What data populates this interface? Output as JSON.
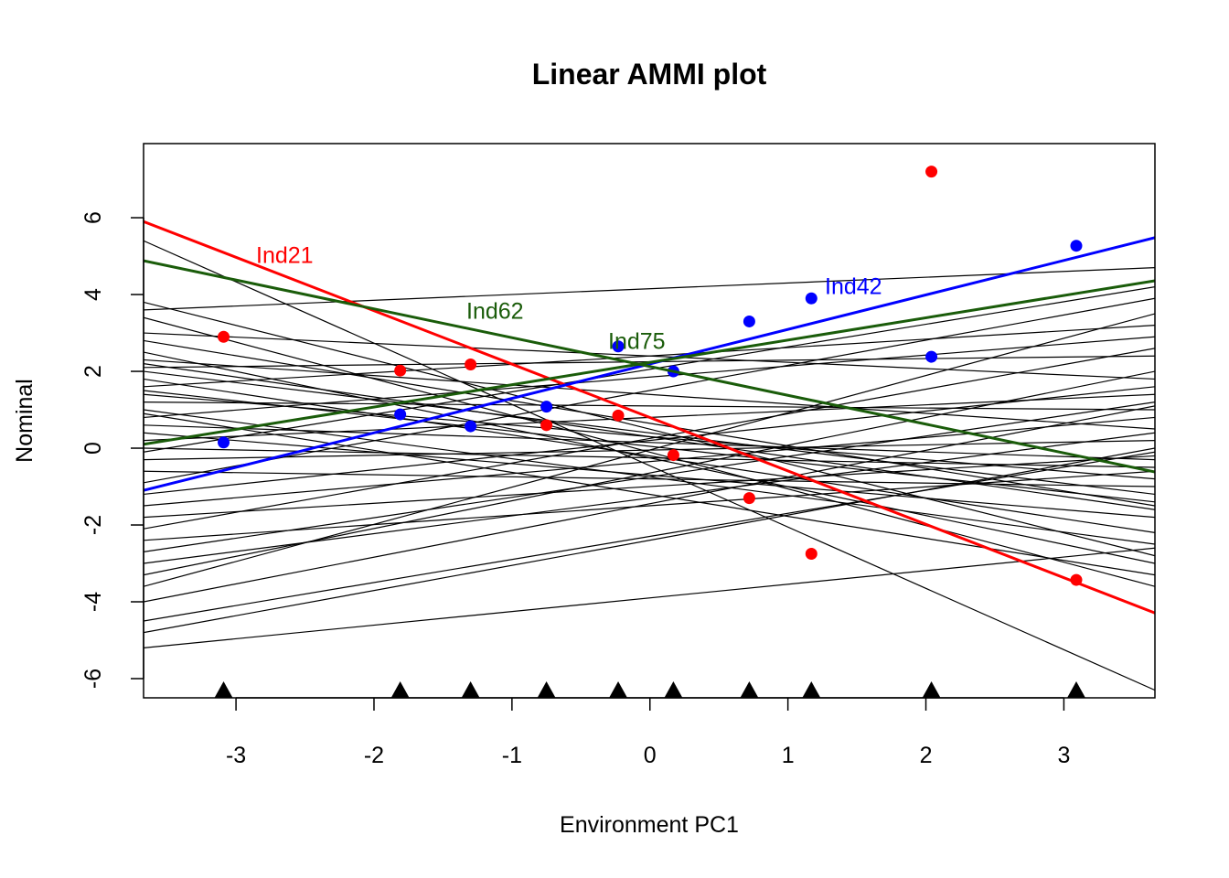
{
  "chart_data": {
    "type": "line",
    "title": "Linear AMMI plot",
    "x_label": "Environment PC1",
    "y_label": "Nominal",
    "xlim": [
      -3.67,
      3.66
    ],
    "ylim": [
      -6.5,
      7.93
    ],
    "xticks": [
      -3,
      -2,
      -1,
      0,
      1,
      2,
      3
    ],
    "yticks": [
      -6,
      -4,
      -2,
      0,
      2,
      4,
      6
    ],
    "environments": [
      -3.09,
      -1.81,
      -1.3,
      -0.75,
      -0.23,
      0.17,
      0.72,
      1.17,
      2.04,
      3.09
    ],
    "other_lines": {
      "color": "#000000",
      "start": [
        5.4,
        3.8,
        3.6,
        3.4,
        3.0,
        2.8,
        2.5,
        2.3,
        2.1,
        2.0,
        1.8,
        1.6,
        1.4,
        1.2,
        1.0,
        0.8,
        0.6,
        0.4,
        0.2,
        0.0,
        -0.3,
        -0.6,
        -0.9,
        -1.2,
        -1.5,
        -1.8,
        -2.1,
        -2.4,
        -2.7,
        -3.0,
        -3.3,
        -3.6,
        -4.0,
        -4.5,
        -4.8,
        -5.2,
        1.5,
        0.9,
        -0.1,
        2.2
      ],
      "end": [
        -6.3,
        -2.8,
        4.7,
        -3.6,
        1.8,
        -1.5,
        -3.0,
        0.5,
        2.4,
        -1.2,
        -2.2,
        3.2,
        -0.8,
        1.0,
        -2.5,
        2.9,
        -0.3,
        -1.8,
        1.4,
        -0.5,
        0.2,
        -1.0,
        3.9,
        1.6,
        0.8,
        -0.2,
        2.6,
        -0.6,
        1.2,
        0.4,
        2.0,
        3.5,
        1.1,
        -0.1,
        0.0,
        -2.6,
        -1.4,
        -3.3,
        4.2,
        -1.6
      ]
    },
    "series": [
      {
        "name": "Ind21",
        "color": "#ff0000",
        "line": [
          5.9,
          -4.29
        ],
        "points": [
          2.9,
          2.02,
          2.18,
          0.6,
          0.85,
          -0.18,
          -1.3,
          -2.75,
          7.2,
          -3.43
        ]
      },
      {
        "name": "Ind42",
        "color": "#0000ff",
        "line": [
          -1.1,
          5.48
        ],
        "points": [
          0.15,
          0.88,
          0.57,
          1.08,
          2.65,
          2.0,
          3.3,
          3.9,
          2.38,
          5.27
        ]
      },
      {
        "name": "Ind62",
        "color": "#1a5c0a",
        "line": [
          4.88,
          -0.62
        ]
      },
      {
        "name": "Ind75",
        "color": "#1a5c0a",
        "line": [
          0.1,
          4.36
        ]
      }
    ]
  }
}
